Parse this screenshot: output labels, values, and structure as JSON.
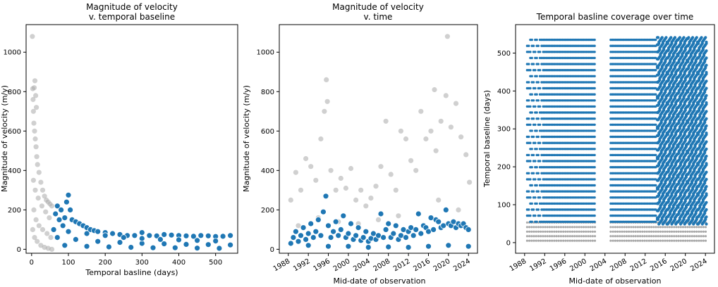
{
  "colors": {
    "kept": "#1f77b4",
    "excluded": "#a9a9a9",
    "axis": "#000000"
  },
  "chart_data": [
    {
      "type": "scatter",
      "title": "Magnitude of velocity\nv. temporal baseline",
      "xlabel": "Temporal basline (days)",
      "ylabel": "Magnitude of velocity (m/y)",
      "xlim": [
        -15,
        560
      ],
      "ylim": [
        -20,
        1140
      ],
      "xticks": [
        0,
        100,
        200,
        300,
        400,
        500
      ],
      "yticks": [
        0,
        200,
        400,
        600,
        800,
        1000
      ],
      "x_is_date": false,
      "grid": false,
      "series": [
        {
          "role": "excluded",
          "points": [
            [
              2,
              1080
            ],
            [
              3,
              815
            ],
            [
              4,
              760
            ],
            [
              5,
              700
            ],
            [
              6,
              640
            ],
            [
              8,
              600
            ],
            [
              10,
              560
            ],
            [
              12,
              520
            ],
            [
              14,
              470
            ],
            [
              16,
              430
            ],
            [
              20,
              390
            ],
            [
              25,
              340
            ],
            [
              30,
              300
            ],
            [
              35,
              270
            ],
            [
              40,
              250
            ],
            [
              45,
              240
            ],
            [
              50,
              230
            ],
            [
              55,
              220
            ],
            [
              5,
              350
            ],
            [
              10,
              300
            ],
            [
              18,
              260
            ],
            [
              28,
              220
            ],
            [
              38,
              190
            ],
            [
              48,
              160
            ],
            [
              6,
              200
            ],
            [
              12,
              150
            ],
            [
              20,
              120
            ],
            [
              30,
              100
            ],
            [
              42,
              80
            ],
            [
              52,
              60
            ],
            [
              3,
              100
            ],
            [
              8,
              60
            ],
            [
              15,
              40
            ],
            [
              25,
              20
            ],
            [
              35,
              10
            ],
            [
              45,
              5
            ],
            [
              55,
              0
            ],
            [
              7,
              820
            ],
            [
              9,
              855
            ],
            [
              11,
              780
            ],
            [
              13,
              720
            ]
          ]
        },
        {
          "role": "kept",
          "points": [
            [
              60,
              100
            ],
            [
              65,
              180
            ],
            [
              70,
              220
            ],
            [
              75,
              150
            ],
            [
              80,
              200
            ],
            [
              85,
              120
            ],
            [
              90,
              160
            ],
            [
              95,
              240
            ],
            [
              100,
              275
            ],
            [
              105,
              200
            ],
            [
              110,
              150
            ],
            [
              120,
              140
            ],
            [
              130,
              130
            ],
            [
              140,
              120
            ],
            [
              150,
              110
            ],
            [
              160,
              100
            ],
            [
              170,
              95
            ],
            [
              180,
              90
            ],
            [
              200,
              85
            ],
            [
              220,
              80
            ],
            [
              240,
              75
            ],
            [
              260,
              70
            ],
            [
              280,
              70
            ],
            [
              300,
              85
            ],
            [
              320,
              70
            ],
            [
              340,
              68
            ],
            [
              360,
              75
            ],
            [
              380,
              72
            ],
            [
              400,
              70
            ],
            [
              420,
              68
            ],
            [
              440,
              66
            ],
            [
              460,
              70
            ],
            [
              480,
              68
            ],
            [
              500,
              65
            ],
            [
              520,
              66
            ],
            [
              540,
              70
            ],
            [
              70,
              60
            ],
            [
              120,
              50
            ],
            [
              180,
              40
            ],
            [
              240,
              35
            ],
            [
              300,
              30
            ],
            [
              360,
              28
            ],
            [
              420,
              25
            ],
            [
              480,
              24
            ],
            [
              540,
              22
            ],
            [
              90,
              20
            ],
            [
              150,
              15
            ],
            [
              210,
              12
            ],
            [
              270,
              10
            ],
            [
              330,
              8
            ],
            [
              390,
              8
            ],
            [
              450,
              6
            ],
            [
              510,
              5
            ],
            [
              100,
              90
            ],
            [
              150,
              80
            ],
            [
              200,
              70
            ],
            [
              250,
              60
            ],
            [
              300,
              55
            ],
            [
              350,
              50
            ],
            [
              400,
              48
            ],
            [
              450,
              45
            ],
            [
              500,
              42
            ]
          ]
        }
      ]
    },
    {
      "type": "scatter",
      "title": "Magnitude of velocity\nv. time",
      "xlabel": "Mid-date of observation",
      "ylabel": "Magnitude of velocity (m/y)",
      "xlim": [
        1986.2,
        2025.8
      ],
      "ylim": [
        -20,
        1140
      ],
      "xticks": [
        1988,
        1992,
        1996,
        2000,
        2004,
        2008,
        2012,
        2016,
        2020,
        2024
      ],
      "yticks": [
        0,
        200,
        400,
        600,
        800,
        1000
      ],
      "x_is_date": true,
      "grid": false,
      "series": [
        {
          "role": "excluded",
          "points": [
            [
              1988.5,
              250
            ],
            [
              1989.5,
              390
            ],
            [
              1990.5,
              300
            ],
            [
              1991.5,
              460
            ],
            [
              1992.5,
              420
            ],
            [
              1993.5,
              350
            ],
            [
              1994.5,
              560
            ],
            [
              1995.2,
              700
            ],
            [
              1995.6,
              860
            ],
            [
              1995.8,
              750
            ],
            [
              1996.5,
              400
            ],
            [
              1997.5,
              300
            ],
            [
              1998.5,
              360
            ],
            [
              1999.5,
              310
            ],
            [
              2000.5,
              410
            ],
            [
              2001.5,
              250
            ],
            [
              2002.5,
              300
            ],
            [
              2003.5,
              220
            ],
            [
              2004.5,
              260
            ],
            [
              2005.5,
              320
            ],
            [
              2006.5,
              420
            ],
            [
              2007.5,
              650
            ],
            [
              2008.5,
              380
            ],
            [
              2009.5,
              300
            ],
            [
              2010.5,
              600
            ],
            [
              2011.5,
              560
            ],
            [
              2012.5,
              450
            ],
            [
              2013.5,
              400
            ],
            [
              2014.5,
              700
            ],
            [
              2015.5,
              560
            ],
            [
              2016.5,
              600
            ],
            [
              2017.2,
              810
            ],
            [
              2017.5,
              500
            ],
            [
              2018.5,
              650
            ],
            [
              2019.5,
              780
            ],
            [
              2019.8,
              1080
            ],
            [
              2020.5,
              620
            ],
            [
              2021.5,
              740
            ],
            [
              2022.5,
              570
            ],
            [
              2023.5,
              480
            ],
            [
              2024.2,
              340
            ],
            [
              1990,
              120
            ],
            [
              1994,
              160
            ],
            [
              1998,
              140
            ],
            [
              2002,
              130
            ],
            [
              2006,
              150
            ],
            [
              2010,
              170
            ],
            [
              2014,
              180
            ],
            [
              2018,
              250
            ],
            [
              2022,
              200
            ]
          ]
        },
        {
          "role": "kept",
          "points": [
            [
              1988.5,
              30
            ],
            [
              1989,
              60
            ],
            [
              1989.5,
              90
            ],
            [
              1990,
              40
            ],
            [
              1990.5,
              70
            ],
            [
              1991,
              110
            ],
            [
              1991.5,
              50
            ],
            [
              1992,
              80
            ],
            [
              1992.5,
              130
            ],
            [
              1993,
              60
            ],
            [
              1993.5,
              90
            ],
            [
              1994,
              150
            ],
            [
              1994.5,
              70
            ],
            [
              1995,
              190
            ],
            [
              1995.5,
              270
            ],
            [
              1996,
              120
            ],
            [
              1996.5,
              60
            ],
            [
              1997,
              90
            ],
            [
              1997.5,
              140
            ],
            [
              1998,
              70
            ],
            [
              1998.5,
              100
            ],
            [
              1999,
              170
            ],
            [
              1999.5,
              60
            ],
            [
              2000,
              80
            ],
            [
              2000.5,
              130
            ],
            [
              2001,
              50
            ],
            [
              2001.5,
              70
            ],
            [
              2002,
              110
            ],
            [
              2002.5,
              45
            ],
            [
              2003,
              60
            ],
            [
              2003.5,
              90
            ],
            [
              2004,
              40
            ],
            [
              2004.5,
              55
            ],
            [
              2005,
              80
            ],
            [
              2005.5,
              50
            ],
            [
              2006,
              70
            ],
            [
              2006.5,
              180
            ],
            [
              2007,
              60
            ],
            [
              2007.5,
              100
            ],
            [
              2008,
              130
            ],
            [
              2008.5,
              60
            ],
            [
              2009,
              80
            ],
            [
              2009.5,
              120
            ],
            [
              2010,
              50
            ],
            [
              2010.5,
              70
            ],
            [
              2011,
              100
            ],
            [
              2011.5,
              60
            ],
            [
              2012,
              90
            ],
            [
              2012.5,
              110
            ],
            [
              2013,
              70
            ],
            [
              2013.5,
              100
            ],
            [
              2014,
              180
            ],
            [
              2014.5,
              80
            ],
            [
              2015,
              120
            ],
            [
              2015.5,
              110
            ],
            [
              2016,
              90
            ],
            [
              2016.5,
              160
            ],
            [
              2017,
              100
            ],
            [
              2017.5,
              150
            ],
            [
              2018,
              140
            ],
            [
              2018.5,
              110
            ],
            [
              2019,
              120
            ],
            [
              2019.5,
              200
            ],
            [
              2020,
              130
            ],
            [
              2020.5,
              120
            ],
            [
              2021,
              140
            ],
            [
              2021.5,
              110
            ],
            [
              2022,
              130
            ],
            [
              2022.5,
              120
            ],
            [
              2023,
              130
            ],
            [
              2023.5,
              110
            ],
            [
              2024,
              100
            ],
            [
              1992,
              20
            ],
            [
              1996,
              15
            ],
            [
              2000,
              15
            ],
            [
              2004,
              10
            ],
            [
              2008,
              12
            ],
            [
              2012,
              10
            ],
            [
              2016,
              15
            ],
            [
              2020,
              20
            ],
            [
              2024,
              15
            ]
          ]
        }
      ]
    },
    {
      "type": "scatter",
      "title": "Temporal basline coverage over time",
      "xlabel": "Mid-date of observation",
      "ylabel": "Temporal baseline (days)",
      "xlim": [
        1986.2,
        2025.8
      ],
      "ylim": [
        -28,
        575
      ],
      "xticks": [
        1988,
        1992,
        1996,
        2000,
        2004,
        2008,
        2012,
        2016,
        2020,
        2024
      ],
      "yticks": [
        0,
        100,
        200,
        300,
        400,
        500
      ],
      "x_is_date": true,
      "grid": false,
      "bands": {
        "kept_row_spacing_days": 16,
        "kept_range": [
          55,
          545
        ],
        "excluded_range": [
          0,
          55
        ],
        "dense_start": 2014.3,
        "x_start": 1988.5,
        "x_end": 2024.2,
        "gaps": [
          [
            2002.1,
            2005.0
          ]
        ],
        "sparse_until": 1991.5
      }
    }
  ]
}
